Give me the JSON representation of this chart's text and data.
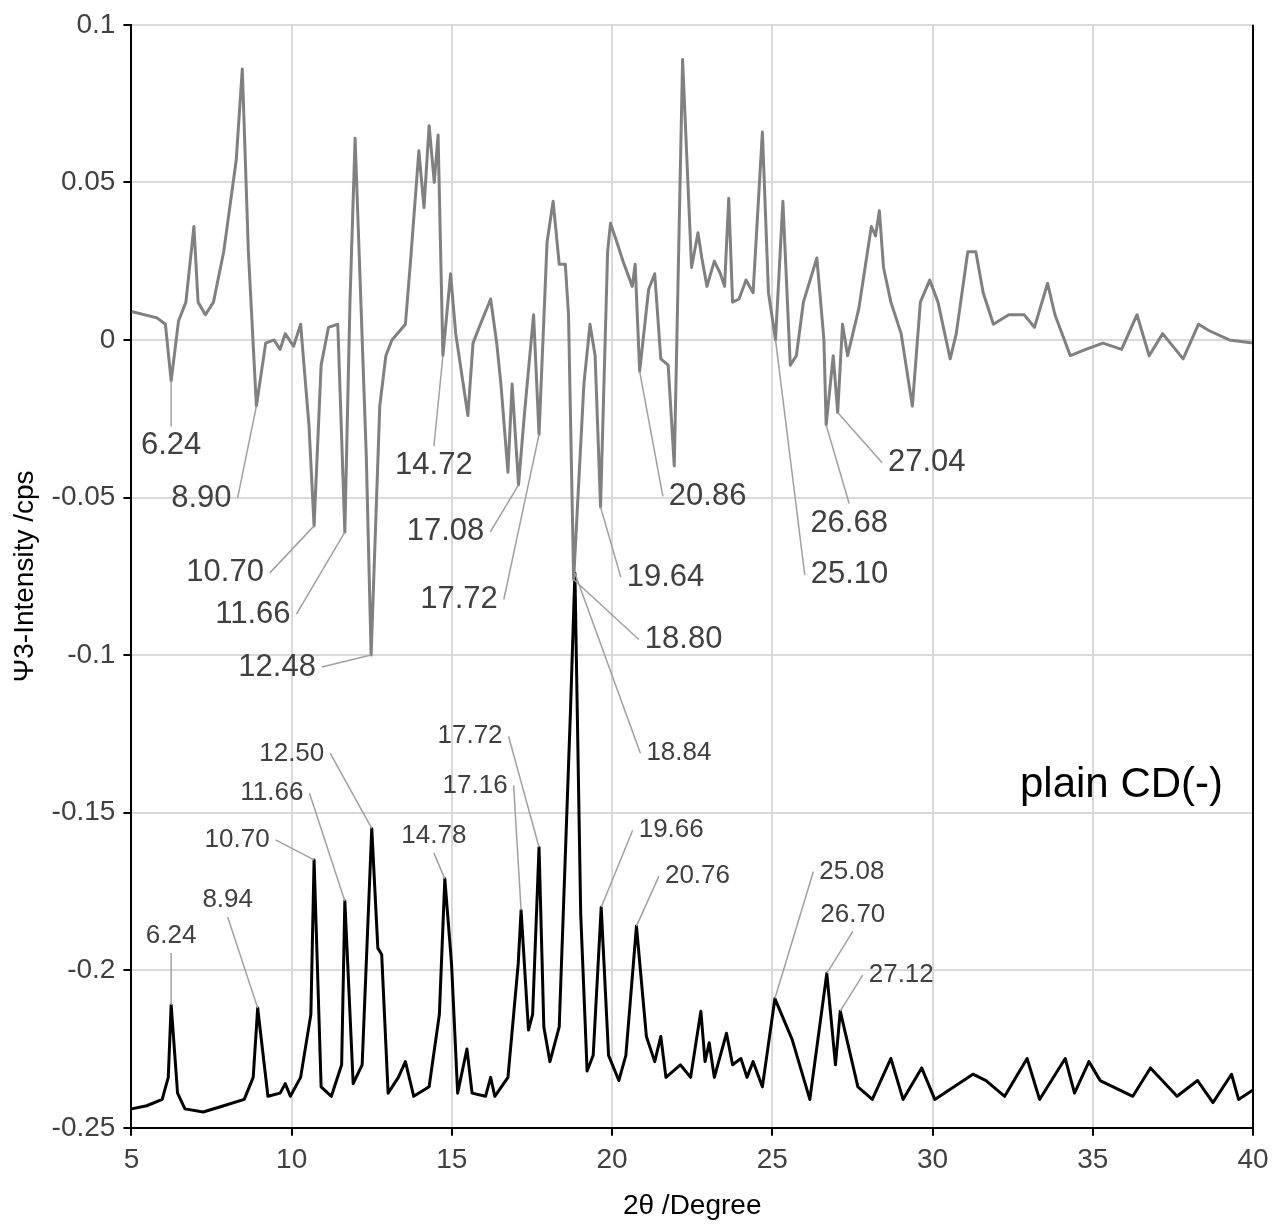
{
  "chart_data": {
    "type": "line",
    "xlabel": "2θ /Degree",
    "ylabel": "Ψ3-Intensity /cps",
    "xlim": [
      5,
      40
    ],
    "xticks": [
      5,
      10,
      15,
      20,
      25,
      30,
      35,
      40
    ],
    "ylim": [
      -0.25,
      0.1
    ],
    "yticks": [
      -0.25,
      -0.2,
      -0.15,
      -0.1,
      -0.05,
      0,
      0.05,
      0.1
    ],
    "grid": true,
    "legend": false,
    "marker": "none",
    "line_style": "solid",
    "series": [
      {
        "color": "#808080",
        "x": [
          5.0,
          5.8,
          6.06,
          6.24,
          6.47,
          6.7,
          6.95,
          7.08,
          7.31,
          7.56,
          7.88,
          8.27,
          8.46,
          8.65,
          8.9,
          9.19,
          9.45,
          9.64,
          9.8,
          10.06,
          10.28,
          10.54,
          10.7,
          10.92,
          11.15,
          11.44,
          11.66,
          11.82,
          11.98,
          12.14,
          12.33,
          12.48,
          12.75,
          12.94,
          13.13,
          13.55,
          13.71,
          13.97,
          14.13,
          14.29,
          14.45,
          14.57,
          14.72,
          14.96,
          15.12,
          15.5,
          15.66,
          15.89,
          16.21,
          16.4,
          16.53,
          16.75,
          16.88,
          17.08,
          17.26,
          17.55,
          17.72,
          17.97,
          18.16,
          18.35,
          18.54,
          18.64,
          18.8,
          19.12,
          19.31,
          19.47,
          19.64,
          19.86,
          19.95,
          20.15,
          20.34,
          20.63,
          20.72,
          20.86,
          21.14,
          21.33,
          21.52,
          21.75,
          21.94,
          22.2,
          22.48,
          22.68,
          22.8,
          22.96,
          23.19,
          23.38,
          23.51,
          23.64,
          23.76,
          23.96,
          24.18,
          24.4,
          24.69,
          24.88,
          25.1,
          25.33,
          25.56,
          25.75,
          25.97,
          26.39,
          26.61,
          26.68,
          26.9,
          27.04,
          27.19,
          27.35,
          27.7,
          28.09,
          28.22,
          28.34,
          28.47,
          28.7,
          29.02,
          29.37,
          29.62,
          29.91,
          30.17,
          30.55,
          30.74,
          31.1,
          31.35,
          31.58,
          31.9,
          32.38,
          32.86,
          33.18,
          33.59,
          33.82,
          34.3,
          34.78,
          35.32,
          35.9,
          36.38,
          36.76,
          37.18,
          37.82,
          38.3,
          38.62,
          39.26,
          40.0
        ],
        "values": [
          0.009,
          0.007,
          0.005,
          -0.013,
          0.006,
          0.012,
          0.036,
          0.012,
          0.008,
          0.012,
          0.028,
          0.057,
          0.086,
          0.028,
          -0.021,
          -0.001,
          0.0,
          -0.003,
          0.002,
          -0.002,
          0.005,
          -0.027,
          -0.059,
          -0.008,
          0.004,
          0.005,
          -0.061,
          0.012,
          0.064,
          0.018,
          -0.037,
          -0.1,
          -0.021,
          -0.005,
          0.0,
          0.005,
          0.025,
          0.06,
          0.042,
          0.068,
          0.05,
          0.065,
          -0.005,
          0.021,
          0.002,
          -0.024,
          -0.001,
          0.005,
          0.013,
          -0.001,
          -0.014,
          -0.042,
          -0.014,
          -0.046,
          -0.024,
          0.008,
          -0.03,
          0.031,
          0.044,
          0.024,
          0.024,
          0.008,
          -0.076,
          -0.014,
          0.005,
          -0.005,
          -0.053,
          0.028,
          0.037,
          0.031,
          0.025,
          0.017,
          0.024,
          -0.01,
          0.016,
          0.021,
          -0.006,
          -0.008,
          -0.04,
          0.089,
          0.023,
          0.034,
          0.026,
          0.017,
          0.025,
          0.021,
          0.017,
          0.045,
          0.012,
          0.013,
          0.019,
          0.015,
          0.066,
          0.015,
          0.0,
          0.044,
          -0.008,
          -0.005,
          0.012,
          0.026,
          0.0,
          -0.027,
          -0.005,
          -0.023,
          0.005,
          -0.005,
          0.01,
          0.036,
          0.033,
          0.041,
          0.023,
          0.012,
          0.002,
          -0.021,
          0.012,
          0.019,
          0.012,
          -0.006,
          0.002,
          0.028,
          0.028,
          0.015,
          0.005,
          0.008,
          0.008,
          0.004,
          0.018,
          0.008,
          -0.005,
          -0.003,
          -0.001,
          -0.003,
          0.008,
          -0.005,
          0.002,
          -0.006,
          0.005,
          0.003,
          0.0,
          -0.001
        ]
      },
      {
        "color": "#000000",
        "x": [
          5.0,
          5.48,
          5.96,
          6.15,
          6.24,
          6.44,
          6.67,
          7.24,
          7.88,
          8.52,
          8.8,
          8.94,
          9.26,
          9.64,
          9.8,
          9.96,
          10.28,
          10.6,
          10.7,
          10.92,
          11.24,
          11.56,
          11.66,
          11.92,
          12.2,
          12.5,
          12.69,
          12.81,
          13.01,
          13.33,
          13.55,
          13.81,
          14.29,
          14.61,
          14.78,
          14.99,
          15.18,
          15.47,
          15.63,
          16.05,
          16.21,
          16.34,
          16.75,
          17.07,
          17.16,
          17.39,
          17.52,
          17.72,
          17.87,
          18.06,
          18.35,
          18.7,
          18.84,
          19.02,
          19.22,
          19.41,
          19.66,
          19.89,
          20.21,
          20.43,
          20.76,
          21.07,
          21.33,
          21.52,
          21.68,
          22.13,
          22.45,
          22.77,
          22.9,
          23.03,
          23.19,
          23.57,
          23.76,
          24.02,
          24.21,
          24.4,
          24.69,
          25.08,
          25.62,
          26.17,
          26.7,
          26.97,
          27.12,
          27.67,
          28.12,
          28.7,
          29.08,
          29.66,
          30.07,
          31.26,
          31.67,
          32.25,
          32.95,
          33.34,
          34.14,
          34.43,
          34.88,
          35.23,
          36.25,
          36.8,
          37.63,
          38.27,
          38.75,
          39.33,
          39.55,
          40.0
        ],
        "values": [
          -0.244,
          -0.243,
          -0.241,
          -0.234,
          -0.211,
          -0.239,
          -0.244,
          -0.245,
          -0.243,
          -0.241,
          -0.234,
          -0.212,
          -0.24,
          -0.239,
          -0.236,
          -0.24,
          -0.234,
          -0.214,
          -0.165,
          -0.237,
          -0.24,
          -0.23,
          -0.178,
          -0.236,
          -0.23,
          -0.155,
          -0.193,
          -0.195,
          -0.239,
          -0.234,
          -0.229,
          -0.24,
          -0.237,
          -0.214,
          -0.171,
          -0.198,
          -0.239,
          -0.225,
          -0.239,
          -0.24,
          -0.234,
          -0.24,
          -0.234,
          -0.198,
          -0.181,
          -0.219,
          -0.214,
          -0.161,
          -0.218,
          -0.229,
          -0.218,
          -0.118,
          -0.074,
          -0.182,
          -0.232,
          -0.227,
          -0.18,
          -0.227,
          -0.235,
          -0.227,
          -0.186,
          -0.221,
          -0.229,
          -0.221,
          -0.234,
          -0.23,
          -0.234,
          -0.213,
          -0.229,
          -0.223,
          -0.234,
          -0.22,
          -0.23,
          -0.228,
          -0.234,
          -0.229,
          -0.237,
          -0.209,
          -0.222,
          -0.241,
          -0.201,
          -0.23,
          -0.213,
          -0.237,
          -0.241,
          -0.228,
          -0.241,
          -0.231,
          -0.241,
          -0.233,
          -0.235,
          -0.24,
          -0.228,
          -0.241,
          -0.228,
          -0.239,
          -0.229,
          -0.235,
          -0.24,
          -0.231,
          -0.24,
          -0.235,
          -0.242,
          -0.233,
          -0.241,
          -0.238
        ]
      }
    ],
    "annotations": [
      {
        "text": "6.24",
        "x": 6.24,
        "y": -0.013
      },
      {
        "text": "8.90",
        "x": 8.9,
        "y": -0.021
      },
      {
        "text": "10.70",
        "x": 10.7,
        "y": -0.059
      },
      {
        "text": "11.66",
        "x": 11.66,
        "y": -0.061
      },
      {
        "text": "12.48",
        "x": 12.48,
        "y": -0.1
      },
      {
        "text": "14.72",
        "x": 14.72,
        "y": -0.005
      },
      {
        "text": "17.08",
        "x": 17.08,
        "y": -0.046
      },
      {
        "text": "17.72",
        "x": 17.72,
        "y": -0.03
      },
      {
        "text": "18.80",
        "x": 18.8,
        "y": -0.076
      },
      {
        "text": "19.64",
        "x": 19.64,
        "y": -0.053
      },
      {
        "text": "20.86",
        "x": 20.86,
        "y": -0.01
      },
      {
        "text": "25.10",
        "x": 25.1,
        "y": 0.0
      },
      {
        "text": "26.68",
        "x": 26.68,
        "y": -0.027
      },
      {
        "text": "27.04",
        "x": 27.04,
        "y": -0.023
      },
      {
        "text": "6.24",
        "x": 6.24,
        "y": -0.211
      },
      {
        "text": "8.94",
        "x": 8.94,
        "y": -0.212
      },
      {
        "text": "10.70",
        "x": 10.7,
        "y": -0.165
      },
      {
        "text": "11.66",
        "x": 11.66,
        "y": -0.178
      },
      {
        "text": "12.50",
        "x": 12.5,
        "y": -0.155
      },
      {
        "text": "14.78",
        "x": 14.78,
        "y": -0.171
      },
      {
        "text": "17.16",
        "x": 17.16,
        "y": -0.181
      },
      {
        "text": "17.72",
        "x": 17.72,
        "y": -0.161
      },
      {
        "text": "18.84",
        "x": 18.84,
        "y": -0.074
      },
      {
        "text": "19.66",
        "x": 19.66,
        "y": -0.18
      },
      {
        "text": "20.76",
        "x": 20.76,
        "y": -0.186
      },
      {
        "text": "25.08",
        "x": 25.08,
        "y": -0.209
      },
      {
        "text": "26.70",
        "x": 26.7,
        "y": -0.201
      },
      {
        "text": "27.12",
        "x": 27.12,
        "y": -0.213
      },
      "plain CD(-)"
    ]
  }
}
